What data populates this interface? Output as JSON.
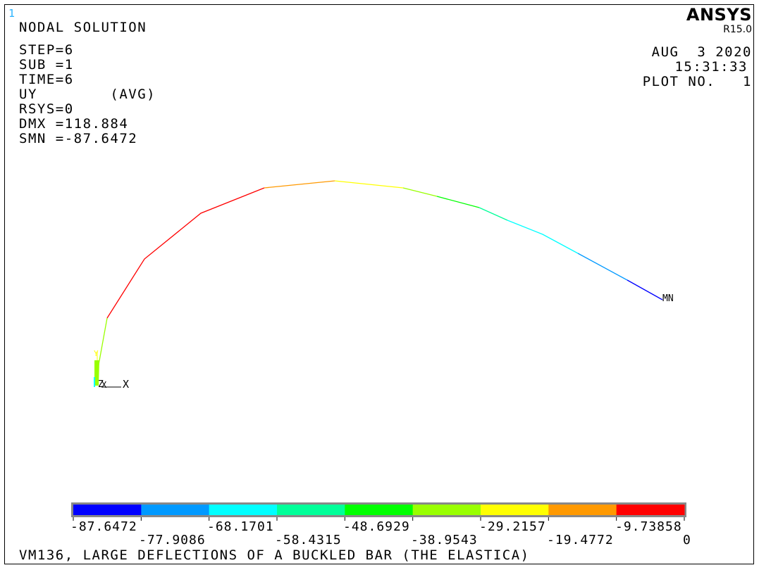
{
  "window_number": "1",
  "plot": {
    "title": "NODAL SOLUTION",
    "info_lines": [
      "STEP=6",
      "SUB =1",
      "TIME=6",
      "UY        (AVG)",
      "RSYS=0",
      "DMX =118.884",
      "SMN =-87.6472"
    ],
    "node_label": "MN",
    "axis_labels": {
      "y": "Y",
      "z": "Z",
      "x_small": "X",
      "x": "X"
    }
  },
  "brand": {
    "name": "ANSYS",
    "release": "R15.0"
  },
  "header_right": {
    "date": "AUG  3 2020",
    "time": "15:31:33",
    "plot_no": "PLOT NO.   1"
  },
  "legend": {
    "colors": [
      "#0000ff",
      "#0099ff",
      "#00ffff",
      "#00ff99",
      "#00ff00",
      "#99ff00",
      "#ffff00",
      "#ff9900",
      "#ff0000"
    ],
    "labels_top": [
      "-87.6472",
      "-68.1701",
      "-48.6929",
      "-29.2157",
      "-9.73858"
    ],
    "labels_bottom": [
      "-77.9086",
      "-58.4315",
      "-38.9543",
      "-19.4772",
      "0"
    ]
  },
  "footer_title": "VM136, LARGE DEFLECTIONS OF A BUCKLED BAR (THE ELASTICA)"
}
